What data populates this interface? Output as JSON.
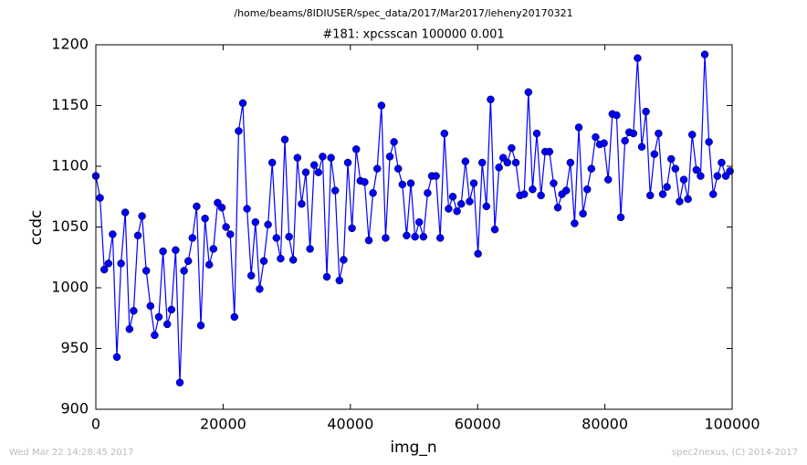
{
  "chart_data": {
    "type": "line",
    "suptitle": "/home/beams/8IDIUSER/spec_data/2017/Mar2017/leheny20170321",
    "title": "#181: xpcsscan 100000 0.001",
    "x_label": "img_n",
    "y_label": "ccdc",
    "timestamp": "Wed Mar 22 14:28:45 2017",
    "credit": "spec2nexus, (C) 2014-2017",
    "xlim": [
      0,
      100000
    ],
    "xticks": [
      0,
      20000,
      40000,
      60000,
      80000,
      100000
    ],
    "ylim": [
      900,
      1200
    ],
    "yticks": [
      900,
      950,
      1000,
      1050,
      1100,
      1150,
      1200
    ],
    "grid": false,
    "x": [
      0,
      660,
      1320,
      1980,
      2640,
      3300,
      3960,
      4620,
      5280,
      5940,
      6600,
      7260,
      7920,
      8580,
      9240,
      9900,
      10560,
      11220,
      11880,
      12540,
      13200,
      13860,
      14520,
      15180,
      15840,
      16500,
      17160,
      17820,
      18480,
      19140,
      19800,
      20460,
      21120,
      21780,
      22440,
      23100,
      23760,
      24420,
      25080,
      25740,
      26400,
      27060,
      27720,
      28380,
      29040,
      29700,
      30360,
      31020,
      31680,
      32340,
      33000,
      33660,
      34320,
      34980,
      35640,
      36300,
      36960,
      37620,
      38280,
      38940,
      39600,
      40260,
      40920,
      41580,
      42240,
      42900,
      43560,
      44220,
      44880,
      45540,
      46200,
      46860,
      47520,
      48180,
      48840,
      49500,
      50160,
      50820,
      51480,
      52140,
      52800,
      53460,
      54120,
      54780,
      55440,
      56100,
      56760,
      57420,
      58080,
      58740,
      59400,
      60060,
      60720,
      61380,
      62040,
      62700,
      63360,
      64020,
      64680,
      65340,
      66000,
      66660,
      67320,
      67980,
      68640,
      69300,
      69960,
      70620,
      71280,
      71940,
      72600,
      73260,
      73920,
      74580,
      75240,
      75900,
      76560,
      77220,
      77880,
      78540,
      79200,
      79860,
      80520,
      81180,
      81840,
      82500,
      83160,
      83820,
      84480,
      85140,
      85800,
      86460,
      87120,
      87780,
      88440,
      89100,
      89760,
      90420,
      91080,
      91740,
      92400,
      93060,
      93720,
      94380,
      95040,
      95700,
      96360,
      97020,
      97680,
      98340,
      99000,
      99660
    ],
    "series": [
      {
        "color": "#0000ff",
        "values": [
          1092,
          1074,
          1015,
          1020,
          1044,
          943,
          1020,
          1062,
          966,
          981,
          1043,
          1059,
          1014,
          985,
          961,
          976,
          1030,
          970,
          982,
          1031,
          922,
          1014,
          1022,
          1041,
          1067,
          969,
          1057,
          1019,
          1032,
          1070,
          1066,
          1050,
          1044,
          976,
          1129,
          1152,
          1065,
          1010,
          1054,
          999,
          1022,
          1052,
          1103,
          1041,
          1024,
          1122,
          1042,
          1023,
          1107,
          1069,
          1095,
          1032,
          1101,
          1095,
          1108,
          1009,
          1107,
          1080,
          1006,
          1023,
          1103,
          1049,
          1114,
          1088,
          1087,
          1039,
          1078,
          1098,
          1150,
          1041,
          1108,
          1120,
          1098,
          1085,
          1043,
          1086,
          1042,
          1054,
          1042,
          1078,
          1092,
          1092,
          1041,
          1127,
          1065,
          1075,
          1063,
          1069,
          1104,
          1071,
          1086,
          1028,
          1103,
          1067,
          1155,
          1048,
          1099,
          1107,
          1103,
          1115,
          1103,
          1076,
          1077,
          1161,
          1081,
          1127,
          1076,
          1112,
          1112,
          1086,
          1066,
          1077,
          1080,
          1103,
          1053,
          1132,
          1061,
          1081,
          1098,
          1124,
          1118,
          1119,
          1089,
          1143,
          1142,
          1058,
          1121,
          1128,
          1127,
          1189,
          1116,
          1145,
          1076,
          1110,
          1127,
          1077,
          1083,
          1106,
          1098,
          1071,
          1089,
          1073,
          1126,
          1097,
          1092,
          1192,
          1120,
          1077,
          1092,
          1103,
          1092,
          1096
        ]
      }
    ]
  }
}
